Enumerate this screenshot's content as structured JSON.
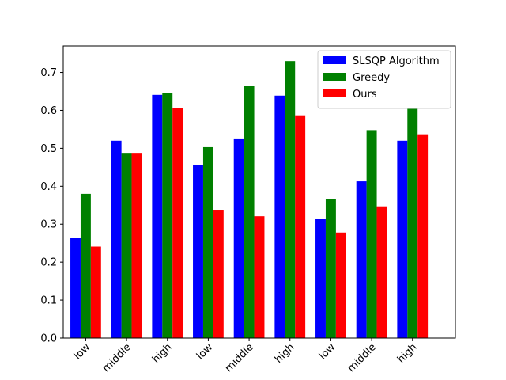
{
  "chart_data": {
    "type": "bar",
    "title": "",
    "xlabel": "",
    "ylabel": "",
    "categories": [
      "low",
      "middle",
      "high",
      "low",
      "middle",
      "high",
      "low",
      "middle",
      "high"
    ],
    "ylim": [
      0.0,
      0.77
    ],
    "yticks": [
      0.0,
      0.1,
      0.2,
      0.3,
      0.4,
      0.5,
      0.6,
      0.7
    ],
    "ytick_labels": [
      "0.0",
      "0.1",
      "0.2",
      "0.3",
      "0.4",
      "0.5",
      "0.6",
      "0.7"
    ],
    "grid": false,
    "legend_position": "top-right",
    "series": [
      {
        "name": "SLSQP Algorithm",
        "color": "#0000ff",
        "values": [
          0.264,
          0.52,
          0.641,
          0.456,
          0.526,
          0.639,
          0.313,
          0.413,
          0.52
        ]
      },
      {
        "name": "Greedy",
        "color": "#008000",
        "values": [
          0.38,
          0.488,
          0.645,
          0.503,
          0.664,
          0.73,
          0.367,
          0.548,
          0.604
        ]
      },
      {
        "name": "Ours",
        "color": "#ff0000",
        "values": [
          0.241,
          0.488,
          0.606,
          0.338,
          0.321,
          0.587,
          0.278,
          0.347,
          0.537
        ]
      }
    ]
  }
}
